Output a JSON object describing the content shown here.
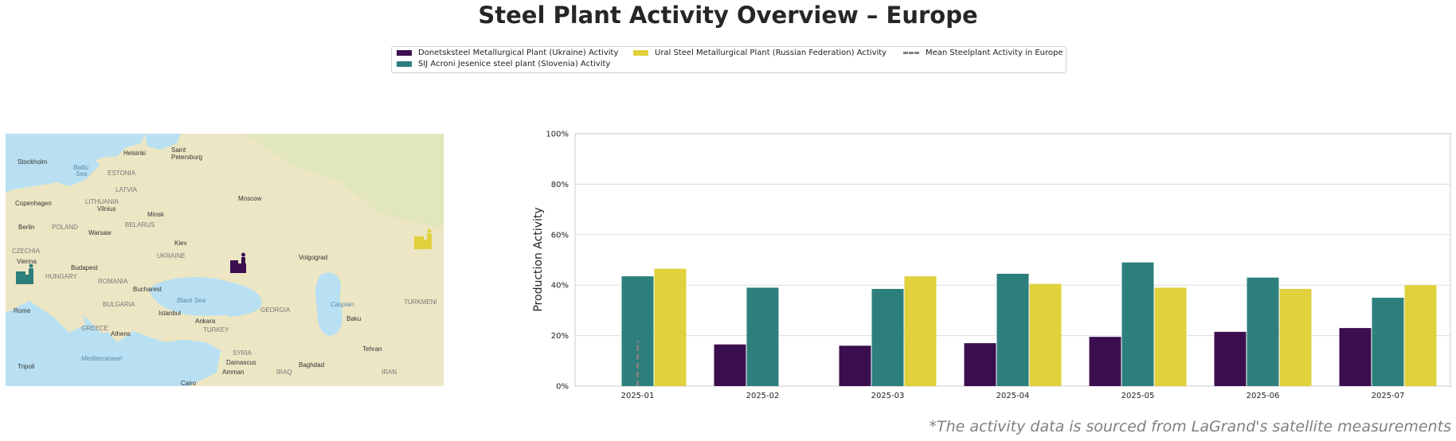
{
  "title": "Steel Plant Activity Overview – Europe",
  "legend": {
    "items": [
      {
        "label": "Donetsksteel Metallurgical Plant (Ukraine) Activity",
        "color": "#3b0f4f",
        "kind": "bar"
      },
      {
        "label": "SIJ Acroni Jesenice steel plant (Slovenia) Activity",
        "color": "#2d7f7c",
        "kind": "bar"
      },
      {
        "label": "Ural Steel Metallurgical Plant (Russian Federation) Activity",
        "color": "#e0d13d",
        "kind": "bar"
      },
      {
        "label": "Mean Steelplant Activity in Europe",
        "color": "#808080",
        "kind": "dashed-line"
      }
    ]
  },
  "map": {
    "labels": {
      "stockholm": "Stockholm",
      "helsinki": "Helsinki",
      "saint": "Saint",
      "petersburg": "Petersburg",
      "baltic": "Baltic",
      "sea": "Sea",
      "estonia": "ESTONIA",
      "latvia": "LATVIA",
      "lithuania": "LITHUANIA",
      "copenhagen": "Copenhagen",
      "vilnius": "Vilnius",
      "minsk": "Minsk",
      "moscow": "Moscow",
      "berlin": "Berlin",
      "poland": "POLAND",
      "belarus": "BELARUS",
      "warsaw": "Warsaw",
      "czechia": "CZECHIA",
      "ukraine": "UKRAINE",
      "kiev": "Kiev",
      "volgograd": "Volgograd",
      "vienna": "Vienna",
      "budapest": "Budapest",
      "hungary": "HUNGARY",
      "romania": "ROMANIA",
      "bucharest": "Bucharest",
      "bulgaria": "BULGARIA",
      "black_sea": "Black Sea",
      "georgia": "GEORGIA",
      "caspian": "Caspian",
      "istanbul": "Istanbul",
      "rome": "Rome",
      "greece": "GREECE",
      "ankara": "Ankara",
      "turkey": "TURKEY",
      "baku": "Baku",
      "athens": "Athens",
      "turkmeni": "TURKMENI",
      "tehran": "Tehran",
      "mediterranean": "Mediterranean",
      "syria": "SYRIA",
      "damascus": "Damascus",
      "tripoli": "Tripoli",
      "baghdad": "Baghdad",
      "amman": "Amman",
      "iraq": "IRAQ",
      "iran": "IRAN",
      "cairo": "Cairo"
    },
    "markers": [
      {
        "name": "Donetsksteel Metallurgical Plant",
        "color": "#3b0f4f",
        "icon": "factory-icon"
      },
      {
        "name": "SIJ Acroni Jesenice steel plant",
        "color": "#2d7f7c",
        "icon": "factory-icon"
      },
      {
        "name": "Ural Steel Metallurgical Plant",
        "color": "#e0d13d",
        "icon": "factory-icon"
      }
    ]
  },
  "chart_data": {
    "type": "bar",
    "categories": [
      "2025-01",
      "2025-02",
      "2025-03",
      "2025-04",
      "2025-05",
      "2025-06",
      "2025-07"
    ],
    "series": [
      {
        "name": "Donetsksteel Metallurgical Plant (Ukraine) Activity",
        "color": "#3b0f4f",
        "values": [
          null,
          16.5,
          16,
          17,
          19.5,
          21.5,
          23
        ]
      },
      {
        "name": "SIJ Acroni Jesenice steel plant (Slovenia) Activity",
        "color": "#2d7f7c",
        "values": [
          43.5,
          39,
          38.5,
          44.5,
          49,
          43,
          35
        ]
      },
      {
        "name": "Ural Steel Metallurgical Plant (Russian Federation) Activity",
        "color": "#e0d13d",
        "values": [
          46.5,
          null,
          43.5,
          40.5,
          39,
          38.5,
          40
        ]
      }
    ],
    "mean_line": {
      "name": "Mean Steelplant Activity in Europe",
      "color": "#808080",
      "category": "2025-01",
      "values": [
        0,
        18
      ]
    },
    "ylabel": "Production Activity",
    "xlabel": "",
    "ylim": [
      0,
      100
    ],
    "yticks": [
      0,
      20,
      40,
      60,
      80,
      100
    ],
    "ytick_labels": [
      "0%",
      "20%",
      "40%",
      "60%",
      "80%",
      "100%"
    ],
    "grid": true
  },
  "footnote": "*The activity data is sourced from LaGrand's satellite measurements"
}
